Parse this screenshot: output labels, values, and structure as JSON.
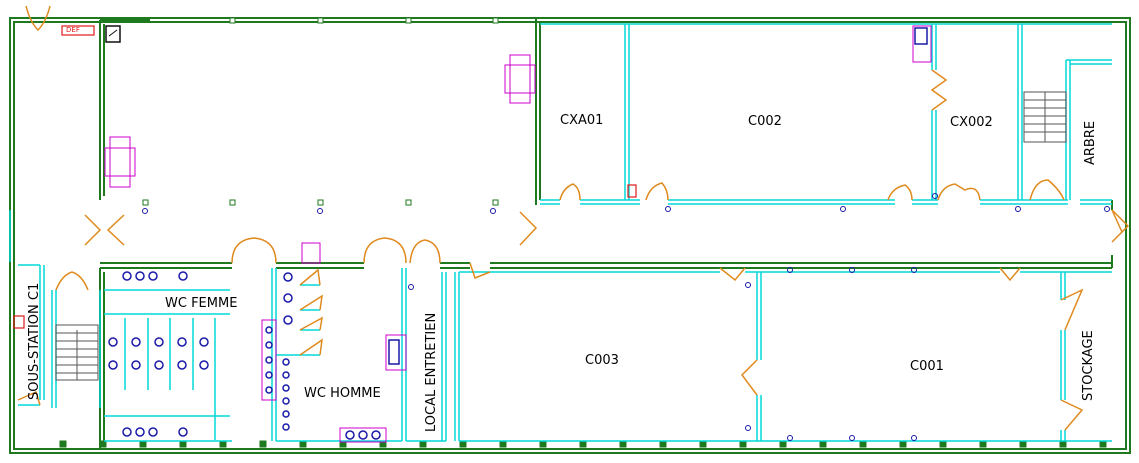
{
  "colors": {
    "wall": "#1f7a1f",
    "partition": "#00d8d8",
    "door": "#e08a1e",
    "furniture": "#cc00cc",
    "sanitary": "#1a1aa8",
    "equipment_red": "#e01b1b"
  },
  "rooms": {
    "sous_station": "SOUS-STATION C1",
    "wc_femme": "WC FEMME",
    "wc_homme": "WC HOMME",
    "local_entretien": "LOCAL ENTRETIEN",
    "cxa01": "CXA01",
    "c002": "C002",
    "cx002": "CX002",
    "arbre": "ARBRE",
    "c003": "C003",
    "c001": "C001",
    "stockage": "STOCKAGE"
  },
  "equipment": {
    "top_left_sign": "DEF",
    "side_sign": "DEF"
  }
}
